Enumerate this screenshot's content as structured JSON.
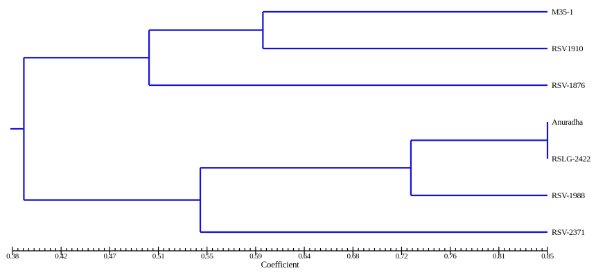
{
  "dendrogram": {
    "leaves": [
      "M35-1",
      "RSV1910",
      "RSV-1876",
      "Anuradha",
      "RSLG-2422",
      "RSV-1988",
      "RSV-2371"
    ],
    "branch_color": "#1010e0",
    "axis": {
      "title": "Coefficient",
      "min": 0.38,
      "max": 0.85,
      "tick_labels": [
        "0.38",
        "0.42",
        "0.47",
        "0.51",
        "0.55",
        "0.59",
        "0.64",
        "0.68",
        "0.72",
        "0.76",
        "0.81",
        "0.85"
      ]
    },
    "merges": [
      {
        "members": [
          "Anuradha",
          "RSLG-2422"
        ],
        "height": 0.85
      },
      {
        "members": [
          "M35-1",
          "RSV1910"
        ],
        "height": 0.6
      },
      {
        "members": [
          "Anuradha",
          "RSLG-2422",
          "RSV-1988"
        ],
        "height": 0.73
      },
      {
        "members": [
          "M35-1",
          "RSV1910",
          "RSV-1876"
        ],
        "height": 0.5
      },
      {
        "members": [
          "Anuradha",
          "RSLG-2422",
          "RSV-1988",
          "RSV-2371"
        ],
        "height": 0.545
      },
      {
        "members": [
          "M35-1",
          "RSV1910",
          "RSV-1876",
          "Anuradha",
          "RSLG-2422",
          "RSV-1988",
          "RSV-2371"
        ],
        "height": 0.39
      }
    ]
  }
}
